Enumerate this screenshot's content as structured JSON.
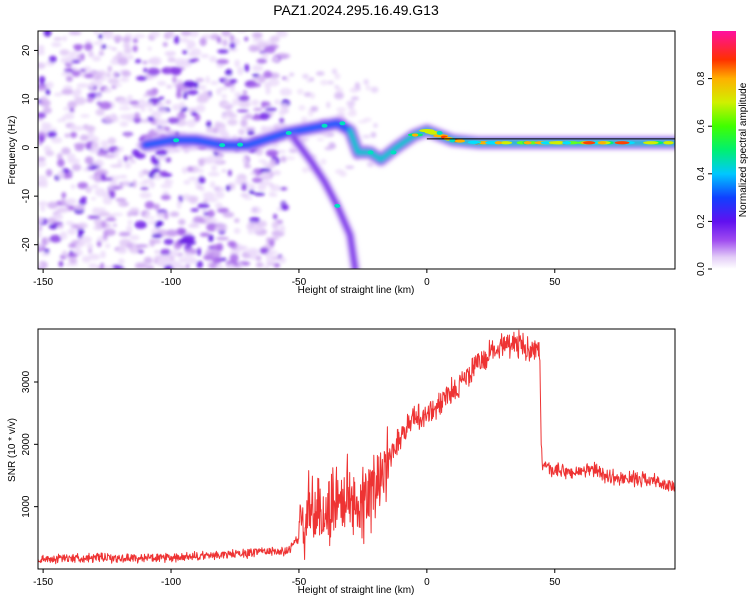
{
  "title": "PAZ1.2024.295.16.49.G13",
  "chart_data": [
    {
      "type": "heatmap",
      "title": "PAZ1.2024.295.16.49.G13",
      "xlabel": "Height of straight line (km)",
      "ylabel": "Frequency (Hz)",
      "xlim": [
        -152,
        97
      ],
      "ylim": [
        -25,
        24
      ],
      "x_ticks": [
        -150,
        -100,
        -50,
        0,
        50
      ],
      "x_tick_labels": [
        "-150",
        "-100",
        "-50",
        "0",
        "50"
      ],
      "y_ticks": [
        -20,
        -10,
        0,
        10,
        20
      ],
      "y_tick_labels": [
        "-20",
        "-10",
        "0",
        "10",
        "20"
      ],
      "colorbar": {
        "label": "Normalized spectral amplitude",
        "range": [
          0,
          1
        ],
        "ticks": [
          0.0,
          0.2,
          0.4,
          0.6,
          0.8
        ],
        "tick_labels": [
          "0.0",
          "0.2",
          "0.4",
          "0.6",
          "0.8"
        ],
        "colormap": "gist_ncar_r-like (white→violet→blue→cyan→green→yellow→red→magenta)"
      },
      "features": {
        "noise_region_x": [
          -152,
          -55
        ],
        "main_track": [
          [
            -110,
            0.5
          ],
          [
            -100,
            1.5
          ],
          [
            -90,
            1.5
          ],
          [
            -80,
            0.5
          ],
          [
            -70,
            0.5
          ],
          [
            -55,
            3.0
          ],
          [
            -45,
            4.0
          ],
          [
            -35,
            5.0
          ],
          [
            -30,
            3.5
          ],
          [
            -27,
            -1.0
          ],
          [
            -22,
            -1.0
          ],
          [
            -18,
            -2.5
          ],
          [
            -12,
            0.0
          ],
          [
            -5,
            2.5
          ],
          [
            0,
            3.5
          ],
          [
            10,
            1.5
          ],
          [
            20,
            1.0
          ],
          [
            40,
            1.0
          ],
          [
            60,
            1.0
          ],
          [
            97,
            1.0
          ]
        ],
        "secondary_track": [
          [
            -52,
            2.0
          ],
          [
            -45,
            -3.0
          ],
          [
            -40,
            -7.0
          ],
          [
            -35,
            -12.0
          ],
          [
            -30,
            -18.0
          ],
          [
            -28,
            -25.0
          ]
        ],
        "reference_line_y": 1.8,
        "reference_line_x": [
          0,
          97
        ]
      }
    },
    {
      "type": "line",
      "xlabel": "Height of straight line (km)",
      "ylabel": "SNR (10 * v/v)",
      "xlim": [
        -152,
        97
      ],
      "ylim": [
        0,
        3850
      ],
      "x_ticks": [
        -150,
        -100,
        -50,
        0,
        50
      ],
      "x_tick_labels": [
        "-150",
        "-100",
        "-50",
        "0",
        "50"
      ],
      "y_ticks": [
        1000,
        2000,
        3000
      ],
      "y_tick_labels": [
        "1000",
        "2000",
        "3000"
      ],
      "color": "#ee3333",
      "series": [
        {
          "x": [
            -152,
            -140,
            -130,
            -120,
            -110,
            -100,
            -90,
            -80,
            -70,
            -65,
            -60,
            -55,
            -50,
            -48,
            -45,
            -42,
            -40,
            -36,
            -32,
            -28,
            -24,
            -20,
            -18,
            -15,
            -10,
            -5,
            0,
            5,
            10,
            15,
            20,
            25,
            30,
            35,
            40,
            44,
            45,
            47,
            55,
            60,
            65,
            70,
            75,
            80,
            85,
            90,
            97
          ],
          "y": [
            150,
            180,
            180,
            170,
            180,
            170,
            200,
            230,
            250,
            300,
            280,
            270,
            500,
            700,
            1000,
            800,
            900,
            1100,
            1150,
            1100,
            1050,
            1300,
            1600,
            1800,
            2150,
            2450,
            2450,
            2650,
            2850,
            3050,
            3300,
            3450,
            3650,
            3600,
            3550,
            3500,
            1650,
            1600,
            1550,
            1550,
            1600,
            1500,
            1450,
            1450,
            1450,
            1400,
            1300
          ]
        }
      ]
    }
  ]
}
